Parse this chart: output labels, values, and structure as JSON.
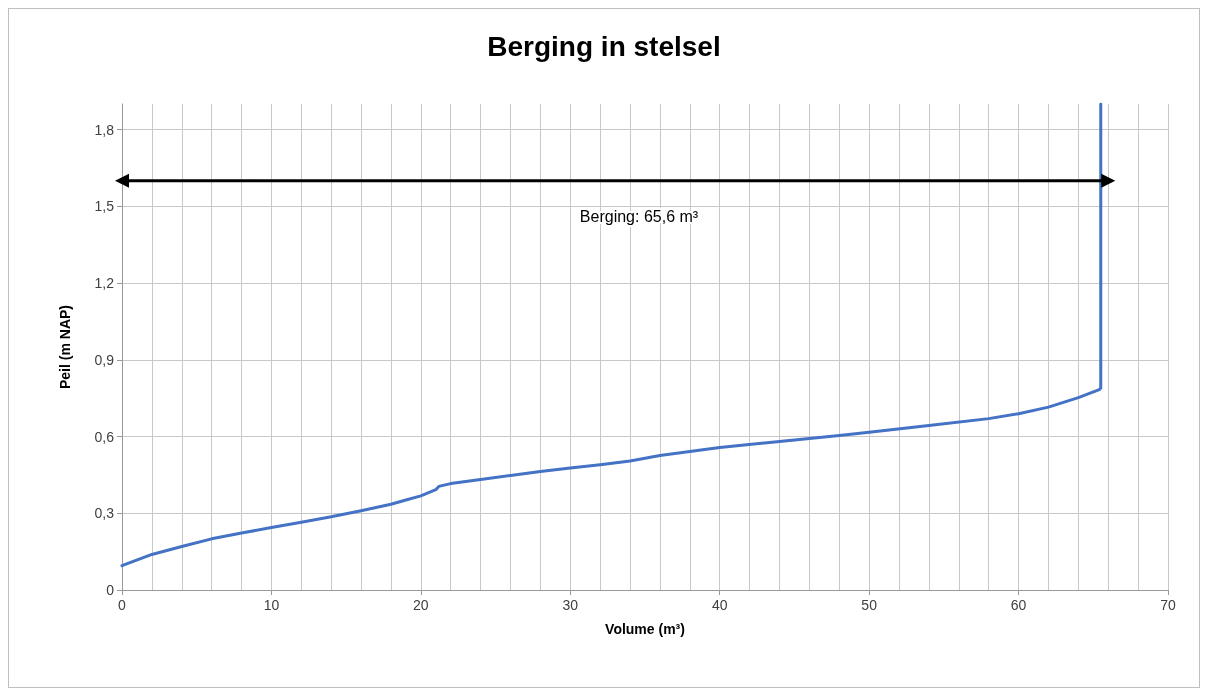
{
  "chart_data": {
    "type": "line",
    "title": "Berging in stelsel",
    "xlabel": "Volume (m³)",
    "ylabel": "Peil (m NAP)",
    "x": [
      0,
      2,
      4,
      6,
      8,
      10,
      12,
      14,
      16,
      18,
      19,
      20,
      21,
      21.2,
      22,
      24,
      26,
      28,
      30,
      32,
      34,
      36,
      40,
      44,
      48,
      50,
      54,
      58,
      60,
      62,
      64,
      65.4,
      65.5,
      65.5
    ],
    "series": [
      {
        "color": "#4472c4",
        "values": [
          0.095,
          0.139,
          0.17,
          0.2,
          0.223,
          0.244,
          0.265,
          0.286,
          0.31,
          0.335,
          0.352,
          0.368,
          0.392,
          0.405,
          0.416,
          0.432,
          0.448,
          0.463,
          0.477,
          0.49,
          0.504,
          0.526,
          0.557,
          0.581,
          0.604,
          0.617,
          0.643,
          0.67,
          0.689,
          0.715,
          0.752,
          0.783,
          0.79,
          1.9
        ]
      },
      {
        "type": "line",
        "color": "#000000",
        "x": [
          0,
          66
        ],
        "values": [
          1.6,
          1.6
        ],
        "marker": "triangle"
      }
    ],
    "annotations": [
      "Berging: 65,6 m³"
    ],
    "xlim": [
      0,
      70
    ],
    "xticks": [
      0,
      10,
      20,
      30,
      40,
      50,
      60,
      70
    ],
    "ylim": [
      0,
      1.9
    ],
    "yticks": [
      0,
      {
        "value": 0.3,
        "label": "0,3"
      },
      {
        "value": 0.6,
        "label": "0,6"
      },
      {
        "value": 0.9,
        "label": "0,9"
      },
      {
        "value": 1.2,
        "label": "1,2"
      },
      {
        "value": 1.5,
        "label": "1,5"
      },
      {
        "value": 1.8,
        "label": "1,8"
      }
    ],
    "grid": true,
    "marker": "none",
    "line_style": "solid"
  }
}
